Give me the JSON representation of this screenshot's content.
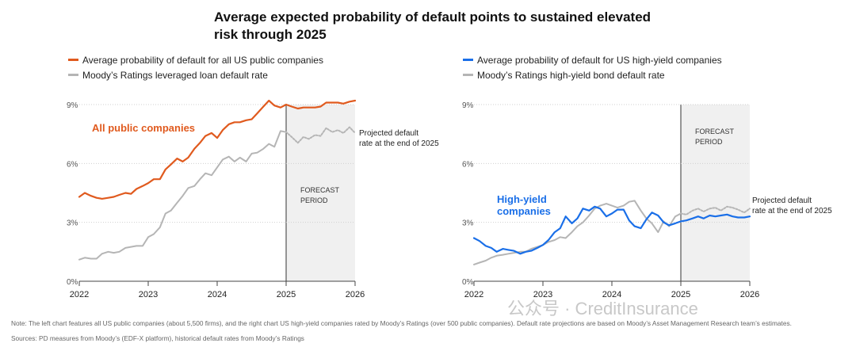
{
  "title": "Average expected probability of default points to sustained elevated risk through 2025",
  "legend_left": [
    {
      "label": "Average probability of default for all US public companies",
      "color": "#e05a1e"
    },
    {
      "label": "Moody’s Ratings leveraged loan default rate",
      "color": "#b5b5b5"
    }
  ],
  "legend_right": [
    {
      "label": "Average probability of default for US high-yield companies",
      "color": "#1a6fe8"
    },
    {
      "label": "Moody’s Ratings high-yield bond default rate",
      "color": "#b5b5b5"
    }
  ],
  "note": "Note: The left chart features all US public companies (about 5,500 firms), and the right chart US high-yield companies rated by Moody’s Ratings (over 500 public companies). Default rate projections are based on Moody’s Asset Management Research team’s estimates.",
  "sources": "Sources: PD measures from Moody’s (EDF-X platform), historical default rates from Moody’s Ratings",
  "watermark": "公众号 · CreditInsurance",
  "chart_data": [
    {
      "type": "line",
      "label": "All public companies",
      "forecast_label": [
        "FORECAST",
        "PERIOD"
      ],
      "annotation": [
        "Projected default",
        "rate at the end of 2025"
      ],
      "forecast_start": 2025.0,
      "xlim": [
        2022,
        2026
      ],
      "ylim": [
        0,
        9
      ],
      "yticks": [
        0,
        3,
        6,
        9
      ],
      "ytick_labels": [
        "0%",
        "3%",
        "6%",
        "9%"
      ],
      "xticks": [
        2022,
        2023,
        2024,
        2025,
        2026
      ],
      "xtick_labels": [
        "2022",
        "2023",
        "2024",
        "2025",
        "2026"
      ],
      "series": [
        {
          "name": "Average probability of default for all US public companies",
          "color": "#e05a1e",
          "dashed": false,
          "x": [
            2022.0,
            2022.08,
            2022.17,
            2022.25,
            2022.33,
            2022.42,
            2022.5,
            2022.58,
            2022.67,
            2022.75,
            2022.83,
            2022.92,
            2023.0,
            2023.08,
            2023.17,
            2023.25,
            2023.33,
            2023.42,
            2023.5,
            2023.58,
            2023.67,
            2023.75,
            2023.83,
            2023.92,
            2024.0,
            2024.08,
            2024.17,
            2024.25,
            2024.33,
            2024.42,
            2024.5,
            2024.58,
            2024.67,
            2024.75,
            2024.83,
            2024.92,
            2025.0,
            2025.08,
            2025.17,
            2025.25,
            2025.33,
            2025.42,
            2025.5,
            2025.58,
            2025.67,
            2025.75,
            2025.83,
            2025.92,
            2026.0
          ],
          "y": [
            4.3,
            4.5,
            4.35,
            4.25,
            4.2,
            4.25,
            4.3,
            4.4,
            4.5,
            4.45,
            4.7,
            4.85,
            5.0,
            5.2,
            5.2,
            5.7,
            5.95,
            6.25,
            6.1,
            6.3,
            6.75,
            7.05,
            7.4,
            7.55,
            7.3,
            7.7,
            8.0,
            8.1,
            8.1,
            8.2,
            8.25,
            8.55,
            8.9,
            9.2,
            8.95,
            8.85,
            9.0,
            8.9,
            8.8,
            8.85,
            8.85,
            8.85,
            8.9,
            9.1,
            9.1,
            9.1,
            9.05,
            9.15,
            9.2
          ]
        },
        {
          "name": "Moody’s Ratings leveraged loan default rate",
          "color": "#b5b5b5",
          "dashed": false,
          "x": [
            2022.0,
            2022.08,
            2022.17,
            2022.25,
            2022.33,
            2022.42,
            2022.5,
            2022.58,
            2022.67,
            2022.75,
            2022.83,
            2022.92,
            2023.0,
            2023.08,
            2023.17,
            2023.25,
            2023.33,
            2023.42,
            2023.5,
            2023.58,
            2023.67,
            2023.75,
            2023.83,
            2023.92,
            2024.0,
            2024.08,
            2024.17,
            2024.25,
            2024.33,
            2024.42,
            2024.5,
            2024.58,
            2024.67,
            2024.75,
            2024.83,
            2024.92,
            2025.0
          ],
          "y": [
            1.1,
            1.2,
            1.15,
            1.15,
            1.4,
            1.5,
            1.45,
            1.5,
            1.7,
            1.75,
            1.8,
            1.8,
            2.25,
            2.4,
            2.75,
            3.45,
            3.6,
            4.0,
            4.35,
            4.75,
            4.85,
            5.2,
            5.5,
            5.4,
            5.8,
            6.2,
            6.35,
            6.1,
            6.3,
            6.1,
            6.5,
            6.55,
            6.75,
            7.0,
            6.85,
            7.65,
            7.6
          ]
        },
        {
          "name": "Projected leveraged loan default rate",
          "color": "#b5b5b5",
          "dashed": true,
          "x": [
            2025.0,
            2025.08,
            2025.17,
            2025.25,
            2025.33,
            2025.42,
            2025.5,
            2025.58,
            2025.67,
            2025.75,
            2025.83,
            2025.92,
            2026.0
          ],
          "y": [
            7.6,
            7.35,
            7.05,
            7.35,
            7.25,
            7.45,
            7.4,
            7.8,
            7.6,
            7.7,
            7.55,
            7.85,
            7.55
          ]
        }
      ]
    },
    {
      "type": "line",
      "label": "High-yield companies",
      "forecast_label": [
        "FORECAST",
        "PERIOD"
      ],
      "annotation": [
        "Projected default",
        "rate at the end of 2025"
      ],
      "forecast_start": 2025.0,
      "xlim": [
        2022,
        2026
      ],
      "ylim": [
        0,
        9
      ],
      "yticks": [
        0,
        3,
        6,
        9
      ],
      "ytick_labels": [
        "0%",
        "3%",
        "6%",
        "9%"
      ],
      "xticks": [
        2022,
        2023,
        2024,
        2025,
        2026
      ],
      "xtick_labels": [
        "2022",
        "2023",
        "2024",
        "2025",
        "2026"
      ],
      "series": [
        {
          "name": "Average probability of default for US high-yield companies",
          "color": "#1a6fe8",
          "dashed": false,
          "x": [
            2022.0,
            2022.08,
            2022.17,
            2022.25,
            2022.33,
            2022.42,
            2022.5,
            2022.58,
            2022.67,
            2022.75,
            2022.83,
            2022.92,
            2023.0,
            2023.08,
            2023.17,
            2023.25,
            2023.33,
            2023.42,
            2023.5,
            2023.58,
            2023.67,
            2023.75,
            2023.83,
            2023.92,
            2024.0,
            2024.08,
            2024.17,
            2024.25,
            2024.33,
            2024.42,
            2024.5,
            2024.58,
            2024.67,
            2024.75,
            2024.83,
            2024.92,
            2025.0,
            2025.08,
            2025.17,
            2025.25,
            2025.33,
            2025.42,
            2025.5,
            2025.58,
            2025.67,
            2025.75,
            2025.83,
            2025.92,
            2026.0
          ],
          "y": [
            2.2,
            2.05,
            1.8,
            1.7,
            1.5,
            1.65,
            1.6,
            1.55,
            1.4,
            1.5,
            1.55,
            1.7,
            1.85,
            2.1,
            2.5,
            2.7,
            3.3,
            2.95,
            3.2,
            3.7,
            3.6,
            3.8,
            3.7,
            3.3,
            3.45,
            3.65,
            3.65,
            3.1,
            2.8,
            2.7,
            3.15,
            3.5,
            3.35,
            3.0,
            2.85,
            2.95,
            3.05,
            3.1,
            3.2,
            3.3,
            3.2,
            3.35,
            3.3,
            3.35,
            3.4,
            3.3,
            3.25,
            3.25,
            3.3
          ]
        },
        {
          "name": "Moody’s Ratings high-yield bond default rate",
          "color": "#b5b5b5",
          "dashed": false,
          "x": [
            2022.0,
            2022.08,
            2022.17,
            2022.25,
            2022.33,
            2022.42,
            2022.5,
            2022.58,
            2022.67,
            2022.75,
            2022.83,
            2022.92,
            2023.0,
            2023.08,
            2023.17,
            2023.25,
            2023.33,
            2023.42,
            2023.5,
            2023.58,
            2023.67,
            2023.75,
            2023.83,
            2023.92,
            2024.0,
            2024.08,
            2024.17,
            2024.25,
            2024.33,
            2024.42,
            2024.5,
            2024.58,
            2024.67,
            2024.75,
            2024.83,
            2024.92,
            2025.0
          ],
          "y": [
            0.85,
            0.95,
            1.05,
            1.2,
            1.3,
            1.35,
            1.4,
            1.45,
            1.5,
            1.5,
            1.65,
            1.75,
            1.85,
            2.0,
            2.1,
            2.25,
            2.2,
            2.5,
            2.8,
            3.0,
            3.35,
            3.7,
            3.85,
            3.95,
            3.85,
            3.75,
            3.85,
            4.05,
            4.1,
            3.6,
            3.2,
            2.95,
            2.5,
            3.05,
            2.8,
            3.3,
            3.45
          ]
        },
        {
          "name": "Projected high-yield bond default rate",
          "color": "#b5b5b5",
          "dashed": true,
          "x": [
            2025.0,
            2025.08,
            2025.17,
            2025.25,
            2025.33,
            2025.42,
            2025.5,
            2025.58,
            2025.67,
            2025.75,
            2025.83,
            2025.92,
            2026.0
          ],
          "y": [
            3.45,
            3.4,
            3.6,
            3.7,
            3.55,
            3.7,
            3.75,
            3.6,
            3.8,
            3.75,
            3.65,
            3.5,
            3.7
          ]
        }
      ]
    }
  ]
}
